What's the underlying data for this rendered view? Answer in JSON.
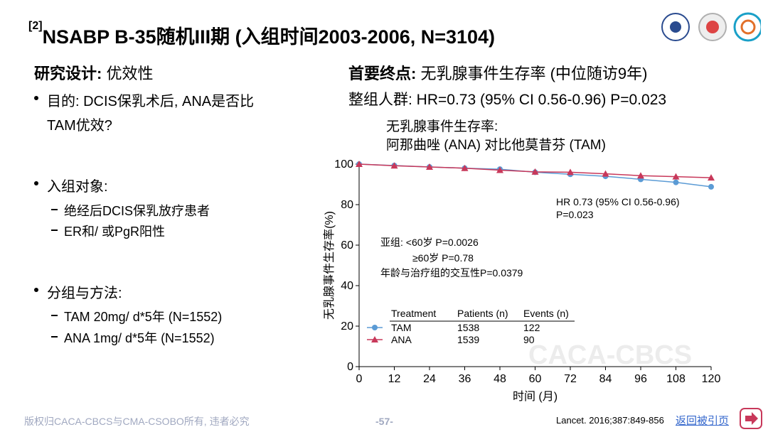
{
  "header": {
    "superscript": "[2]",
    "title": "NSABP B-35随机III期 (入组时间2003-2006, N=3104)"
  },
  "left": {
    "heading_label": "研究设计:",
    "heading_text": "优效性",
    "bullets": [
      {
        "text": "目的: DCIS保乳术后, ANA是否比",
        "text2": "TAM优效?"
      },
      {
        "text": "入组对象:",
        "subs": [
          "绝经后DCIS保乳放疗患者",
          "ER和/ 或PgR阳性"
        ]
      },
      {
        "text": "分组与方法:",
        "subs": [
          "TAM 20mg/ d*5年 (N=1552)",
          "ANA 1mg/ d*5年 (N=1552)"
        ]
      }
    ]
  },
  "right": {
    "endpoint_label": "首要终点:",
    "endpoint_text": "无乳腺事件生存率 (中位随访9年)",
    "overall": "整组人群: HR=0.73 (95% CI 0.56-0.96) P=0.023"
  },
  "chart_data": {
    "type": "line",
    "title": [
      "无乳腺事件生存率:",
      "阿那曲唑 (ANA) 对比他莫昔芬 (TAM)"
    ],
    "x": [
      0,
      12,
      24,
      36,
      48,
      60,
      72,
      84,
      96,
      108,
      120
    ],
    "xlabel": "时间 (月)",
    "ylabel": "无乳腺事件生存率(%)",
    "xlim": [
      0,
      120
    ],
    "xticks": [
      0,
      12,
      24,
      36,
      48,
      60,
      72,
      84,
      96,
      108,
      120
    ],
    "ylim": [
      0,
      100
    ],
    "yticks": [
      0,
      20,
      40,
      60,
      80,
      100
    ],
    "series": [
      {
        "name": "TAM",
        "color": "#5b9bd5",
        "marker": "circle",
        "patients": 1538,
        "events": 122,
        "values": [
          100,
          99.3,
          98.6,
          98,
          97.5,
          96,
          95,
          94,
          92.5,
          91,
          88.8
        ]
      },
      {
        "name": "ANA",
        "color": "#c8385a",
        "marker": "triangle",
        "patients": 1539,
        "events": 90,
        "values": [
          100,
          99.2,
          98.6,
          98,
          97,
          96.2,
          96,
          95.2,
          94.3,
          93.8,
          93.3
        ]
      }
    ],
    "legend_headers": [
      "Treatment",
      "Patients (n)",
      "Events (n)"
    ],
    "annotations": {
      "hr": "HR 0.73 (95% CI 0.56-0.96)",
      "p": "P=0.023",
      "subgroup": [
        "亚组: <60岁 P=0.0026",
        "≥60岁 P=0.78",
        "年龄与治疗组的交互性P=0.0379"
      ]
    },
    "watermark": "CACA-CBCS"
  },
  "footer": {
    "copyright": "版权归CACA-CBCS与CMA-CSOBO所有, 违者必究",
    "page": "-57-",
    "reference": "Lancet. 2016;387:849-856",
    "link": "返回被引页"
  }
}
